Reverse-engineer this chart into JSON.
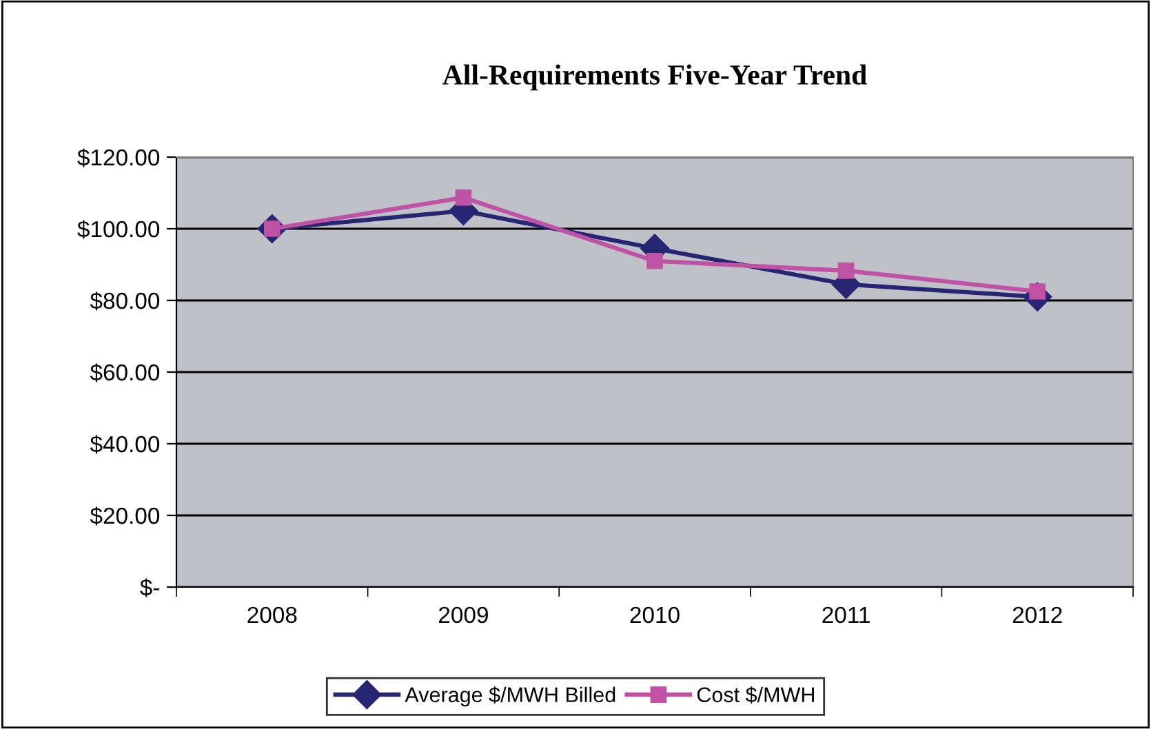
{
  "chart_data": {
    "type": "line",
    "title": "All-Requirements Five-Year Trend",
    "categories": [
      "2008",
      "2009",
      "2010",
      "2011",
      "2012"
    ],
    "series": [
      {
        "name": "Average $/MWH Billed",
        "color": "#262673",
        "marker": "diamond",
        "values": [
          100,
          105,
          94.5,
          84.5,
          81
        ]
      },
      {
        "name": "Cost $/MWH",
        "color": "#c052a6",
        "marker": "square",
        "values": [
          100,
          108.7,
          91,
          88.3,
          82.5
        ]
      }
    ],
    "ylim": [
      0,
      120
    ],
    "yticks": [
      {
        "value": 0,
        "label": "$-"
      },
      {
        "value": 20,
        "label": "$20.00"
      },
      {
        "value": 40,
        "label": "$40.00"
      },
      {
        "value": 60,
        "label": "$60.00"
      },
      {
        "value": 80,
        "label": "$80.00"
      },
      {
        "value": 100,
        "label": "$100.00"
      },
      {
        "value": 120,
        "label": "$120.00"
      }
    ],
    "grid": "y",
    "legend": "bottom",
    "line_style": "solid"
  }
}
